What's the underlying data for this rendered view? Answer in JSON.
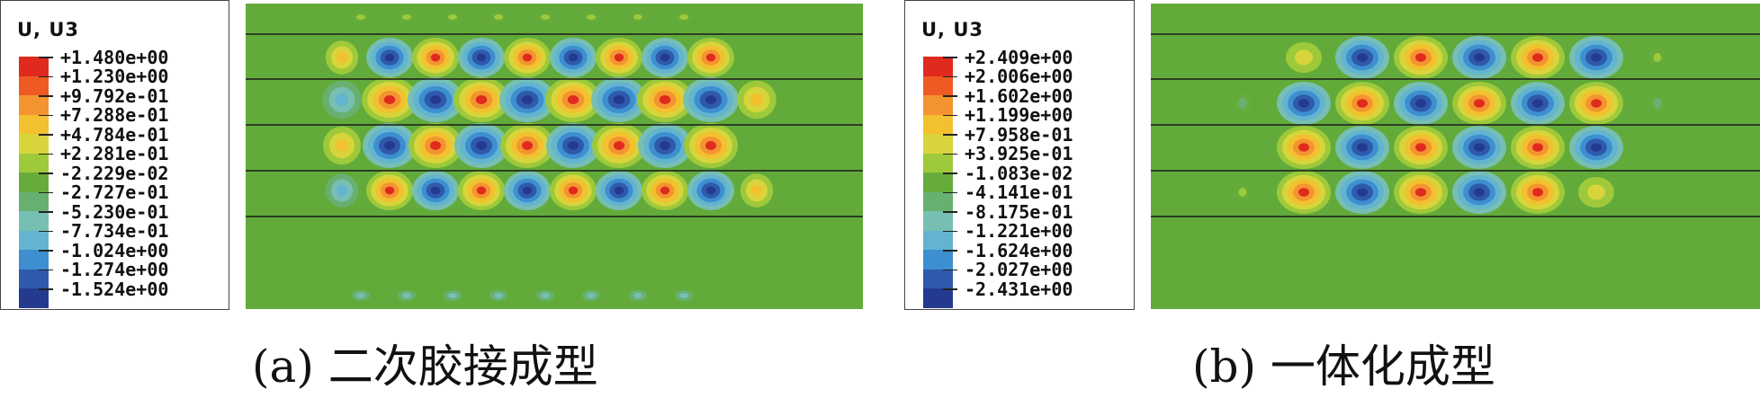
{
  "panel_a": {
    "legend_title": "U, U3",
    "legend_labels": [
      "+1.480e+00",
      "+1.230e+00",
      "+9.792e-01",
      "+7.288e-01",
      "+4.784e-01",
      "+2.281e-01",
      "-2.229e-02",
      "-2.727e-01",
      "-5.230e-01",
      "-7.734e-01",
      "-1.024e+00",
      "-1.274e+00",
      "-1.524e+00"
    ],
    "caption": "(a) 二次胶接成型"
  },
  "panel_b": {
    "legend_title": "U, U3",
    "legend_labels": [
      "+2.409e+00",
      "+2.006e+00",
      "+1.602e+00",
      "+1.199e+00",
      "+7.958e-01",
      "+3.925e-01",
      "-1.083e-02",
      "-4.141e-01",
      "-8.175e-01",
      "-1.221e+00",
      "-1.624e+00",
      "-2.027e+00",
      "-2.431e+00"
    ],
    "caption": "(b) 一体化成型"
  },
  "colors": {
    "legend_scale": [
      "#e02a1e",
      "#ef5a23",
      "#f39431",
      "#f3c02f",
      "#d7d53b",
      "#9ec93b",
      "#66ac3a",
      "#67b070",
      "#77bfb2",
      "#63b4cf",
      "#3e8fcf",
      "#2f5aac",
      "#243a8f"
    ],
    "background": "#62ab3a"
  }
}
